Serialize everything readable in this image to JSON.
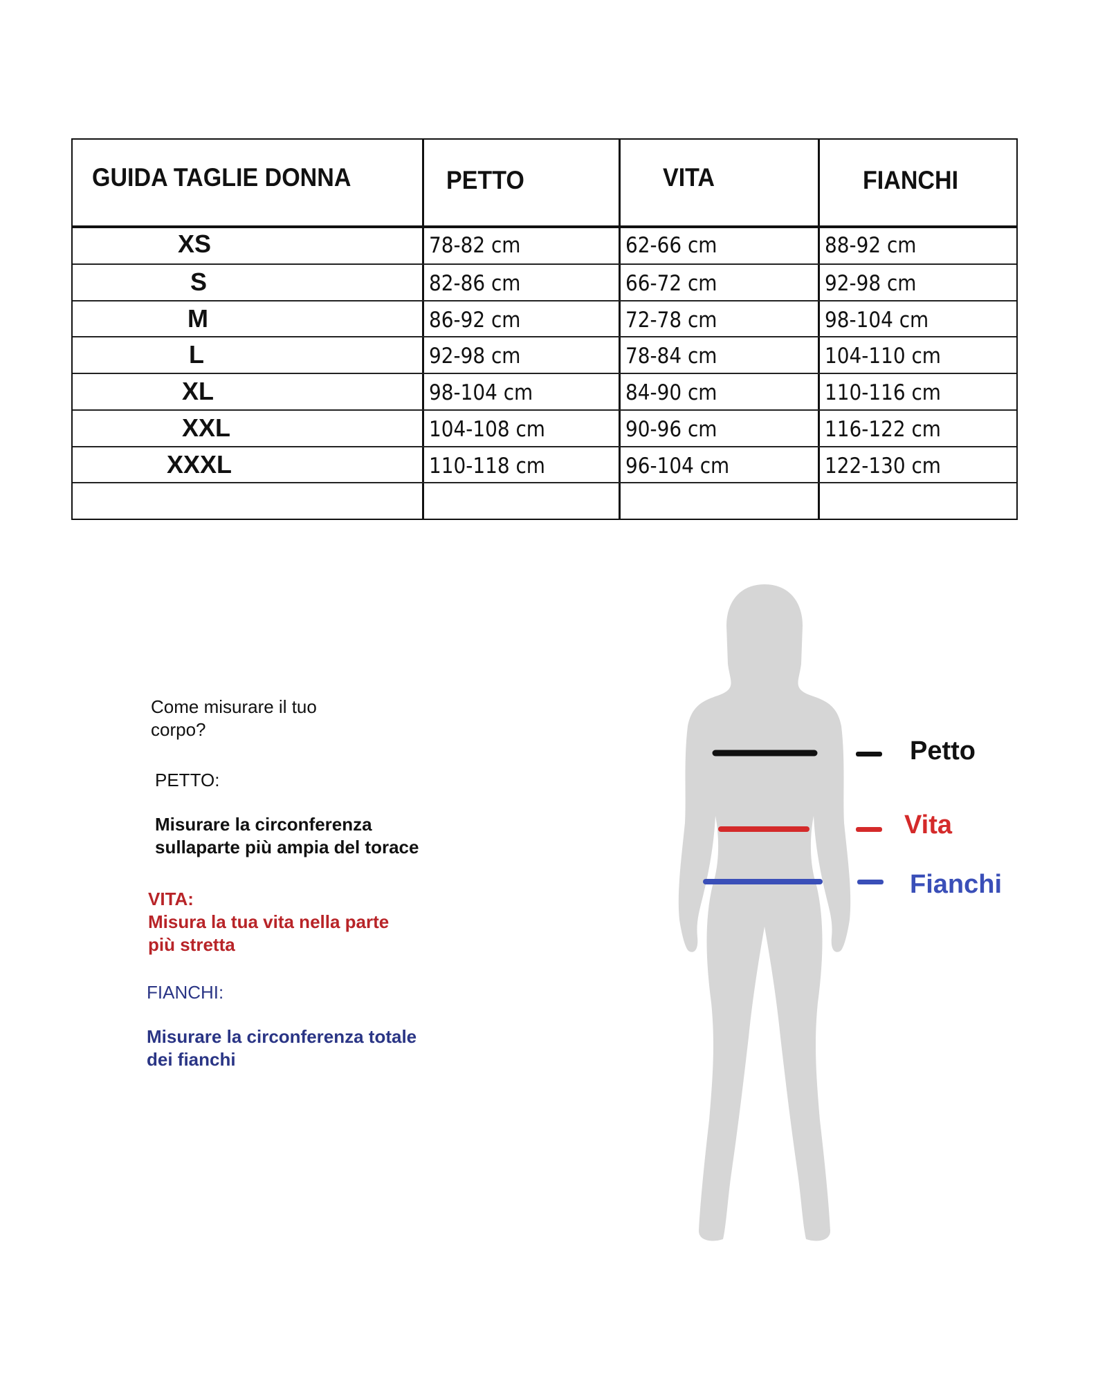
{
  "table": {
    "headers": [
      "GUIDA TAGLIE DONNA",
      "PETTO",
      "VITA",
      "FIANCHI"
    ],
    "rows": [
      {
        "size": "XS",
        "petto": "78-82 cm",
        "vita": "62-66 cm",
        "fianchi": "88-92 cm"
      },
      {
        "size": "S",
        "petto": "82-86 cm",
        "vita": "66-72 cm",
        "fianchi": "92-98 cm"
      },
      {
        "size": "M",
        "petto": "86-92 cm",
        "vita": "72-78 cm",
        "fianchi": "98-104 cm"
      },
      {
        "size": "L",
        "petto": "92-98 cm",
        "vita": "78-84 cm",
        "fianchi": "104-110 cm"
      },
      {
        "size": "XL",
        "petto": "98-104 cm",
        "vita": "84-90 cm",
        "fianchi": "110-116 cm"
      },
      {
        "size": "XXL",
        "petto": "104-108 cm",
        "vita": "90-96 cm",
        "fianchi": "116-122 cm"
      },
      {
        "size": "XXXL",
        "petto": "110-118 cm",
        "vita": "96-104 cm",
        "fianchi": "122-130 cm"
      }
    ]
  },
  "instructions": {
    "title_line1": "Come misurare il tuo",
    "title_line2": "corpo?",
    "petto_heading": "PETTO:",
    "petto_line1": "Misurare la circonferenza",
    "petto_line2": "sullaparte più ampia del torace",
    "vita_heading": "VITA:",
    "vita_line1": "Misura la tua vita nella parte",
    "vita_line2": "più stretta",
    "fianchi_heading": "FIANCHI:",
    "fianchi_line1": "Misurare la circonferenza totale",
    "fianchi_line2": "dei fianchi"
  },
  "figure": {
    "legend": {
      "petto": "Petto",
      "vita": "Vita",
      "fianchi": "Fianchi"
    },
    "colors": {
      "petto": "#111111",
      "vita": "#d42a2a",
      "fianchi": "#3a4fb8",
      "silhouette": "#d6d6d6",
      "vita_text": "#b82428",
      "fianchi_text": "#2a3585"
    }
  }
}
